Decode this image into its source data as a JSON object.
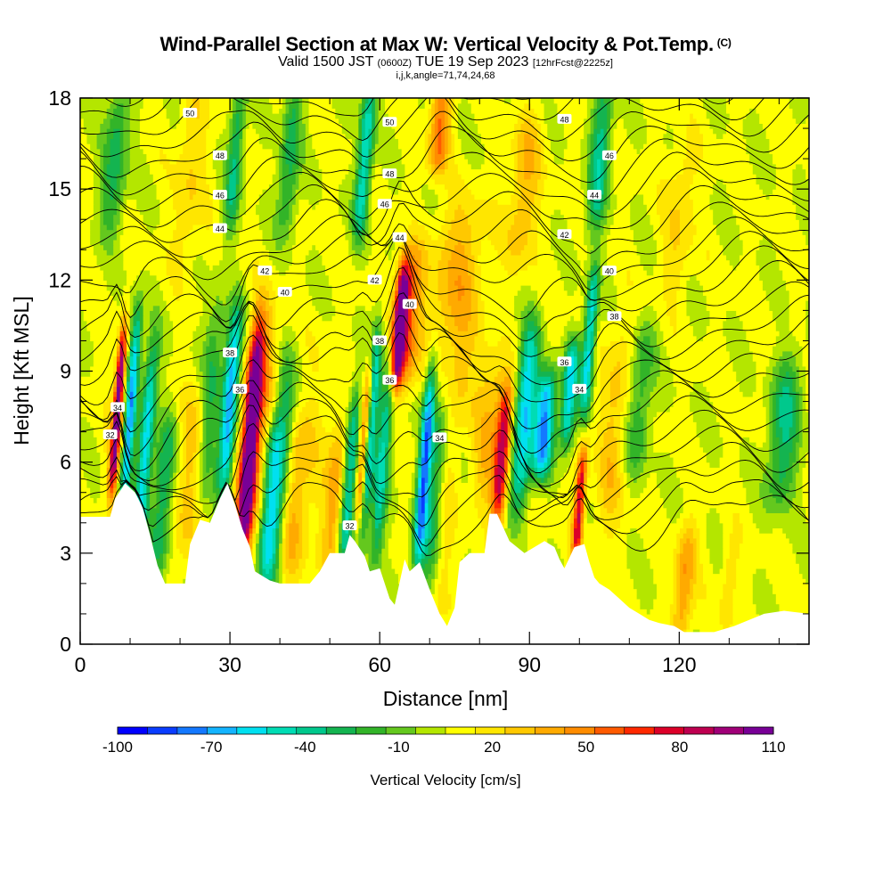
{
  "title": {
    "main": "Wind-Parallel Section at Max W: Vertical Velocity & Pot.Temp.",
    "main_mark": "(C)",
    "valid_a": "Valid 1500 JST",
    "valid_utc": "(0600Z)",
    "valid_b": "TUE 19 Sep 2023",
    "fcst": "[12hrFcst@2225z]",
    "indices": "i,j,k,angle=71,74,24,68"
  },
  "chart_data": {
    "type": "heatmap",
    "xlabel": "Distance [nm]",
    "ylabel": "Height [Kft MSL]",
    "xlim": [
      0,
      146
    ],
    "ylim": [
      0,
      18
    ],
    "x_ticks": [
      0,
      30,
      60,
      90,
      120
    ],
    "y_ticks": [
      0,
      3,
      6,
      9,
      12,
      15,
      18
    ],
    "colorbar": {
      "label": "Vertical Velocity [cm/s]",
      "tick_labels": [
        -100,
        -70,
        -40,
        -10,
        20,
        50,
        80,
        110
      ],
      "levels": [
        -100,
        -90,
        -80,
        -70,
        -60,
        -50,
        -40,
        -30,
        -20,
        -10,
        0,
        10,
        20,
        30,
        40,
        50,
        60,
        70,
        80,
        90,
        100,
        110
      ],
      "colors": [
        "#0000ff",
        "#0a3cff",
        "#1478ff",
        "#14b4ff",
        "#00e0f0",
        "#00dcb4",
        "#00c88c",
        "#14b450",
        "#32b428",
        "#64c81e",
        "#b4e600",
        "#ffff00",
        "#ffe600",
        "#ffc800",
        "#ffaa00",
        "#ff8c00",
        "#ff5a00",
        "#ff2800",
        "#dc0028",
        "#be0050",
        "#a00078",
        "#780096"
      ]
    },
    "contour_labels": [
      "50",
      "48",
      "46",
      "44",
      "42",
      "40",
      "38",
      "36",
      "34",
      "32",
      "50",
      "48",
      "46",
      "44",
      "42",
      "40",
      "38",
      "36",
      "34",
      "32",
      "48",
      "46",
      "44",
      "42",
      "40",
      "38",
      "36",
      "34"
    ],
    "terrain_height_kft": [
      [
        0,
        4.2
      ],
      [
        6,
        4.2
      ],
      [
        7,
        4.8
      ],
      [
        9,
        5.3
      ],
      [
        11,
        5
      ],
      [
        12.5,
        4.5
      ],
      [
        14,
        3.6
      ],
      [
        15.5,
        2.6
      ],
      [
        17,
        2
      ],
      [
        21,
        2
      ],
      [
        22,
        3.3
      ],
      [
        24,
        4.1
      ],
      [
        26,
        4
      ],
      [
        27,
        4.4
      ],
      [
        28,
        4.8
      ],
      [
        29.5,
        5.3
      ],
      [
        31,
        4.6
      ],
      [
        32.5,
        3.8
      ],
      [
        34,
        3.2
      ],
      [
        35,
        2.4
      ],
      [
        38,
        2.1
      ],
      [
        40,
        2
      ],
      [
        46,
        2
      ],
      [
        48,
        2.4
      ],
      [
        50,
        3
      ],
      [
        53,
        3
      ],
      [
        54,
        3.6
      ],
      [
        55,
        3.4
      ],
      [
        57,
        2.9
      ],
      [
        58,
        2.4
      ],
      [
        60,
        2.5
      ],
      [
        62,
        1.5
      ],
      [
        63,
        1.3
      ],
      [
        65,
        2.8
      ],
      [
        66,
        2.4
      ],
      [
        68,
        2.7
      ],
      [
        70,
        1.8
      ],
      [
        72,
        1
      ],
      [
        73.5,
        0.6
      ],
      [
        75,
        1.2
      ],
      [
        76,
        2.7
      ],
      [
        78,
        3
      ],
      [
        81,
        3
      ],
      [
        82,
        4.3
      ],
      [
        83.5,
        4.3
      ],
      [
        86,
        3.4
      ],
      [
        89,
        3
      ],
      [
        93,
        3.4
      ],
      [
        95,
        3.2
      ],
      [
        96,
        2.8
      ],
      [
        97,
        2.5
      ],
      [
        99,
        3.2
      ],
      [
        101,
        3.3
      ],
      [
        102,
        2.7
      ],
      [
        103,
        2.2
      ],
      [
        104,
        2
      ],
      [
        106,
        1.8
      ],
      [
        108,
        1.5
      ],
      [
        110,
        1.2
      ],
      [
        112,
        1
      ],
      [
        114,
        0.8
      ],
      [
        116,
        0.7
      ],
      [
        119,
        0.6
      ],
      [
        121,
        0.4
      ],
      [
        127,
        0.4
      ],
      [
        131,
        0.6
      ],
      [
        134,
        0.8
      ],
      [
        137,
        1
      ],
      [
        141,
        1.1
      ],
      [
        146,
        1
      ]
    ],
    "velocity_features": [
      {
        "x": 7.5,
        "y0": 5.5,
        "y1": 10,
        "w": 105,
        "width_nm": 0.8
      },
      {
        "x": 8,
        "y0": 5.2,
        "y1": 9.5,
        "w": 35,
        "width_nm": 2.2
      },
      {
        "x": 10,
        "y0": 4.8,
        "y1": 10.5,
        "w": -75,
        "width_nm": 1.2
      },
      {
        "x": 13,
        "y0": 3,
        "y1": 9.5,
        "w": -55,
        "width_nm": 1.5
      },
      {
        "x": 16.5,
        "y0": 2.5,
        "y1": 7,
        "w": -30,
        "width_nm": 2.0
      },
      {
        "x": 22,
        "y0": 3,
        "y1": 8,
        "w": 35,
        "width_nm": 3.0
      },
      {
        "x": 26,
        "y0": 5,
        "y1": 11,
        "w": -20,
        "width_nm": 2.0
      },
      {
        "x": 30,
        "y0": 5.5,
        "y1": 10.5,
        "w": -70,
        "width_nm": 1.6
      },
      {
        "x": 34,
        "y0": 3.2,
        "y1": 10,
        "w": 110,
        "width_nm": 1.4
      },
      {
        "x": 35,
        "y0": 3.5,
        "y1": 10.5,
        "w": 60,
        "width_nm": 3.0
      },
      {
        "x": 38,
        "y0": 2.5,
        "y1": 7,
        "w": -40,
        "width_nm": 2.0
      },
      {
        "x": 40,
        "y0": 2.5,
        "y1": 9,
        "w": -25,
        "width_nm": 2.0
      },
      {
        "x": 43,
        "y0": 2.5,
        "y1": 7,
        "w": 40,
        "width_nm": 2.5
      },
      {
        "x": 47,
        "y0": 3,
        "y1": 10,
        "w": 20,
        "width_nm": 3.0
      },
      {
        "x": 51,
        "y0": 3,
        "y1": 7,
        "w": 45,
        "width_nm": 2.0
      },
      {
        "x": 54,
        "y0": 3,
        "y1": 8,
        "w": -45,
        "width_nm": 1.4
      },
      {
        "x": 57,
        "y0": 4.5,
        "y1": 9,
        "w": 80,
        "width_nm": 1.0
      },
      {
        "x": 58,
        "y0": 4,
        "y1": 10,
        "w": -60,
        "width_nm": 1.2
      },
      {
        "x": 60.5,
        "y0": 3,
        "y1": 9,
        "w": -40,
        "width_nm": 1.5
      },
      {
        "x": 64,
        "y0": 9,
        "y1": 12,
        "w": 110,
        "width_nm": 1.2
      },
      {
        "x": 65.5,
        "y0": 9,
        "y1": 12.5,
        "w": 70,
        "width_nm": 2.5
      },
      {
        "x": 69,
        "y0": 3,
        "y1": 9,
        "w": -65,
        "width_nm": 1.2
      },
      {
        "x": 71,
        "y0": 2,
        "y1": 9,
        "w": -25,
        "width_nm": 2.5
      },
      {
        "x": 73,
        "y0": 1,
        "y1": 7,
        "w": 30,
        "width_nm": 2.0
      },
      {
        "x": 75,
        "y0": 8,
        "y1": 14,
        "w": 45,
        "width_nm": 5.0
      },
      {
        "x": 84.5,
        "y0": 4.4,
        "y1": 8,
        "w": 90,
        "width_nm": 1.5
      },
      {
        "x": 82,
        "y0": 5,
        "y1": 9,
        "w": 40,
        "width_nm": 3.0
      },
      {
        "x": 89,
        "y0": 5,
        "y1": 10,
        "w": -60,
        "width_nm": 2.0
      },
      {
        "x": 93,
        "y0": 6,
        "y1": 8.5,
        "w": -70,
        "width_nm": 2.0
      },
      {
        "x": 98,
        "y0": 7,
        "y1": 9.5,
        "w": -55,
        "width_nm": 1.5
      },
      {
        "x": 100,
        "y0": 3.3,
        "y1": 6,
        "w": 90,
        "width_nm": 1.0
      },
      {
        "x": 102,
        "y0": 8,
        "y1": 12,
        "w": -55,
        "width_nm": 1.2
      },
      {
        "x": 107,
        "y0": 4,
        "y1": 10,
        "w": 35,
        "width_nm": 3.0
      },
      {
        "x": 112,
        "y0": 6,
        "y1": 10,
        "w": -20,
        "width_nm": 2.5
      },
      {
        "x": 121,
        "y0": 0.5,
        "y1": 3.5,
        "w": 50,
        "width_nm": 2.0
      },
      {
        "x": 130,
        "y0": 1,
        "y1": 3,
        "w": 30,
        "width_nm": 1.5
      },
      {
        "x": 141,
        "y0": 5,
        "y1": 9,
        "w": -30,
        "width_nm": 3.0
      },
      {
        "x": 7,
        "y0": 14,
        "y1": 18,
        "w": -25,
        "width_nm": 2.5
      },
      {
        "x": 22,
        "y0": 13,
        "y1": 18,
        "w": 30,
        "width_nm": 3.0
      },
      {
        "x": 31,
        "y0": 14,
        "y1": 18,
        "w": -30,
        "width_nm": 1.5
      },
      {
        "x": 42,
        "y0": 14,
        "y1": 18,
        "w": -25,
        "width_nm": 2.0
      },
      {
        "x": 57,
        "y0": 14,
        "y1": 18,
        "w": -50,
        "width_nm": 1.5
      },
      {
        "x": 72,
        "y0": 16,
        "y1": 18,
        "w": 60,
        "width_nm": 2.0
      },
      {
        "x": 89,
        "y0": 13,
        "y1": 17,
        "w": 40,
        "width_nm": 3.0
      },
      {
        "x": 104,
        "y0": 14,
        "y1": 18,
        "w": -35,
        "width_nm": 2.0
      },
      {
        "x": 120,
        "y0": 12,
        "y1": 16,
        "w": 30,
        "width_nm": 3.0
      }
    ]
  }
}
